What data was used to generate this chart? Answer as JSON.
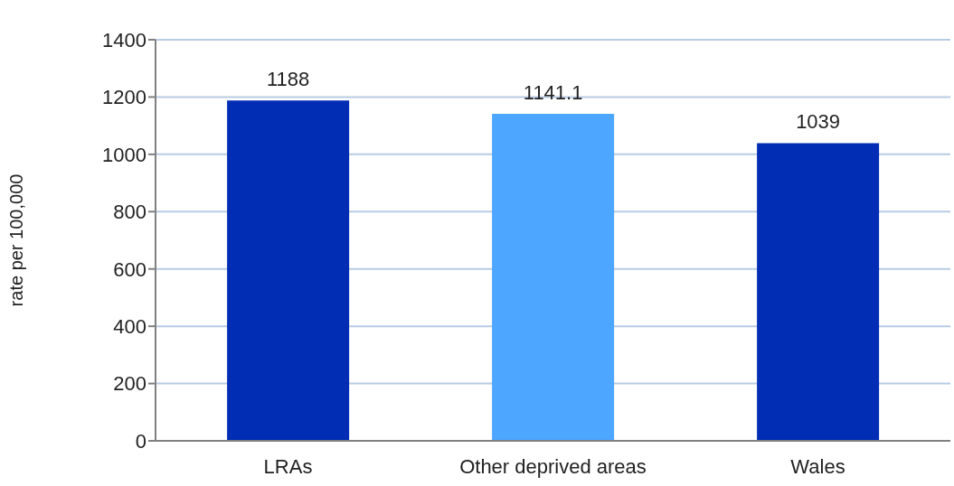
{
  "chart_data": {
    "type": "bar",
    "ylabel": "rate per 100,000",
    "categories": [
      "LRAs",
      "Other deprived areas",
      "Wales"
    ],
    "values": [
      1188,
      1141.1,
      1039
    ],
    "colors": [
      "#002db3",
      "#4da6ff",
      "#002db3"
    ],
    "ylim": [
      0,
      1400
    ],
    "yticks": [
      0,
      200,
      400,
      600,
      800,
      1000,
      1200,
      1400
    ],
    "grid": "y",
    "data_labels": true
  }
}
